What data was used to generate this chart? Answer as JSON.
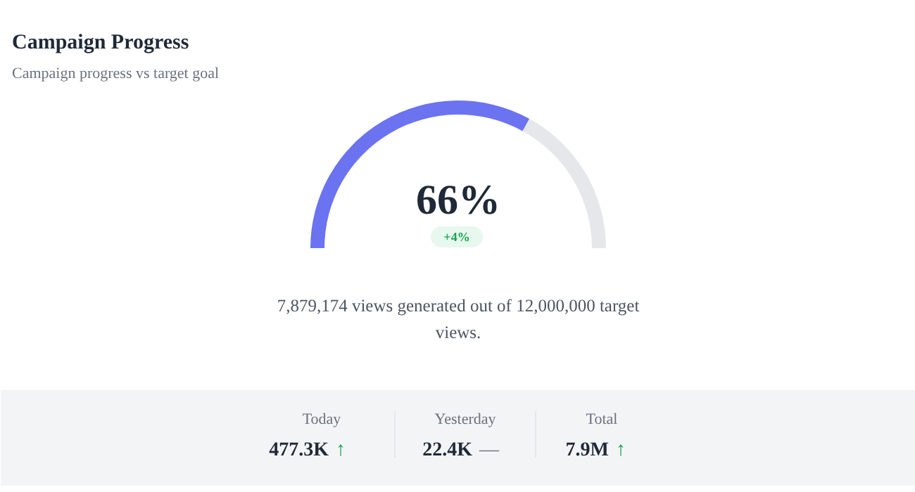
{
  "chart_data": {
    "type": "donut",
    "title": "Campaign Progress",
    "subtitle": "Campaign progress vs target goal",
    "categories": [
      null,
      null
    ],
    "values": [
      66,
      34
    ],
    "colors": [
      "#6b73f0",
      "#e5e7eb"
    ],
    "annotations": [
      "66%",
      "+4%",
      "7,879,174 views generated out of 12,000,000 target views.",
      "Today",
      "477.3K ↑",
      "Yesterday",
      "22.4K —",
      "Total",
      "7.9M ↑"
    ]
  }
}
